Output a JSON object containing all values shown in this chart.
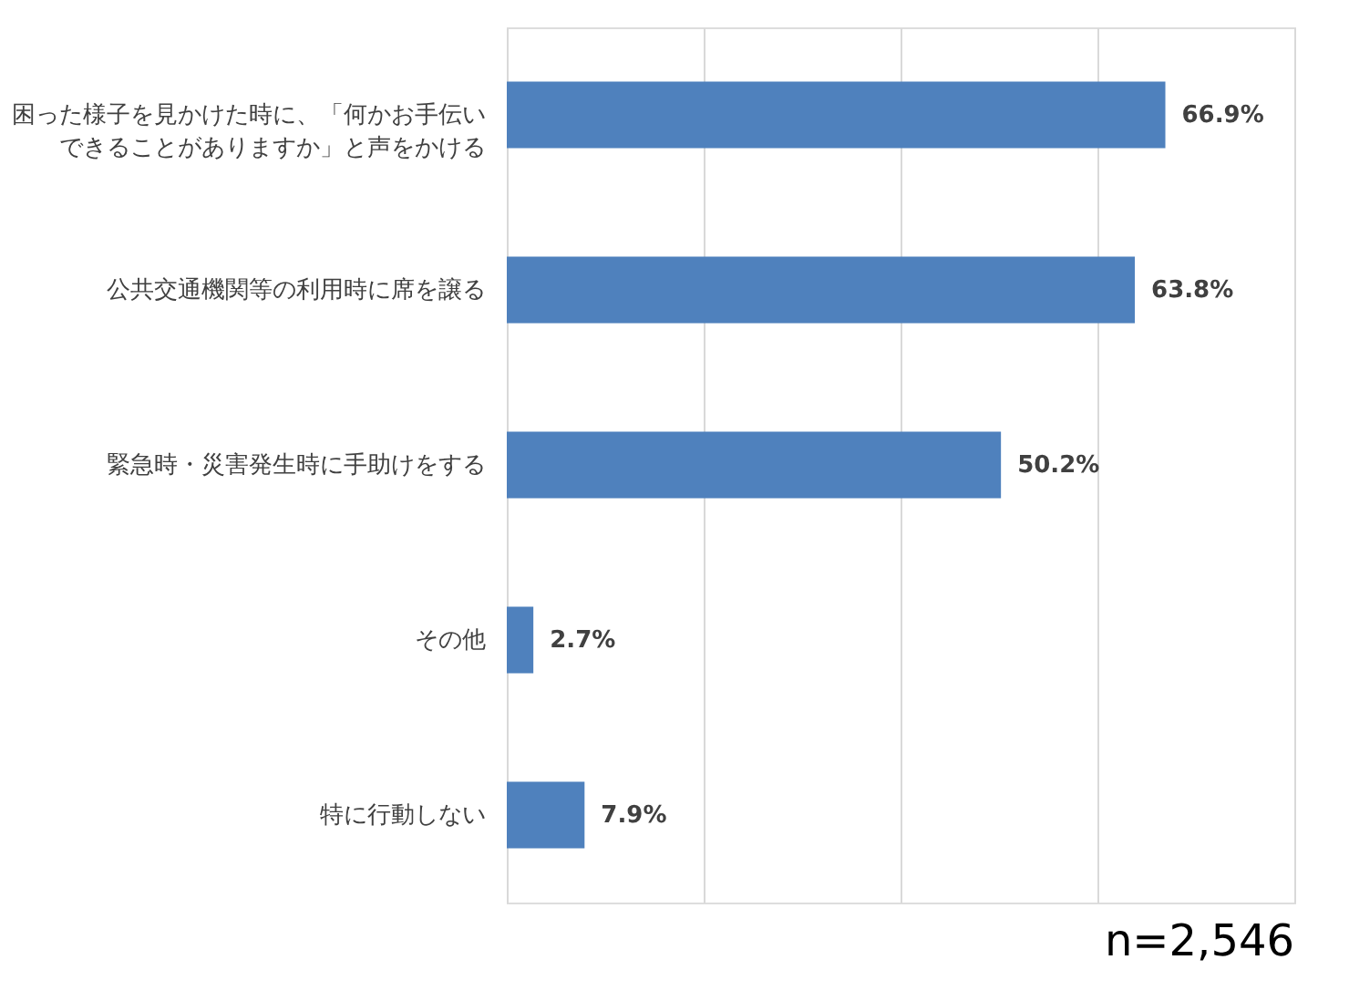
{
  "chart_data": {
    "type": "bar",
    "orientation": "horizontal",
    "categories": [
      "困った様子を見かけた時に、「何かお手伝いできることがありますか」と声をかける",
      "公共交通機関等の利用時に席を譲る",
      "緊急時・災害発生時に手助けをする",
      "その他",
      "特に行動しない"
    ],
    "values": [
      66.9,
      63.8,
      50.2,
      2.7,
      7.9
    ],
    "value_labels": [
      "66.9%",
      "63.8%",
      "50.2%",
      "2.7%",
      "7.9%"
    ],
    "color": "#4f81bd",
    "xlim": [
      0,
      80
    ],
    "xticks": [
      {
        "value": 0,
        "label": null
      },
      {
        "value": 20,
        "label": null
      },
      {
        "value": 40,
        "label": null
      },
      {
        "value": 60,
        "label": null
      },
      {
        "value": 80,
        "label": null
      }
    ],
    "grid": "x",
    "tick_labels": "y",
    "annotations": [
      "n=2,546"
    ]
  }
}
